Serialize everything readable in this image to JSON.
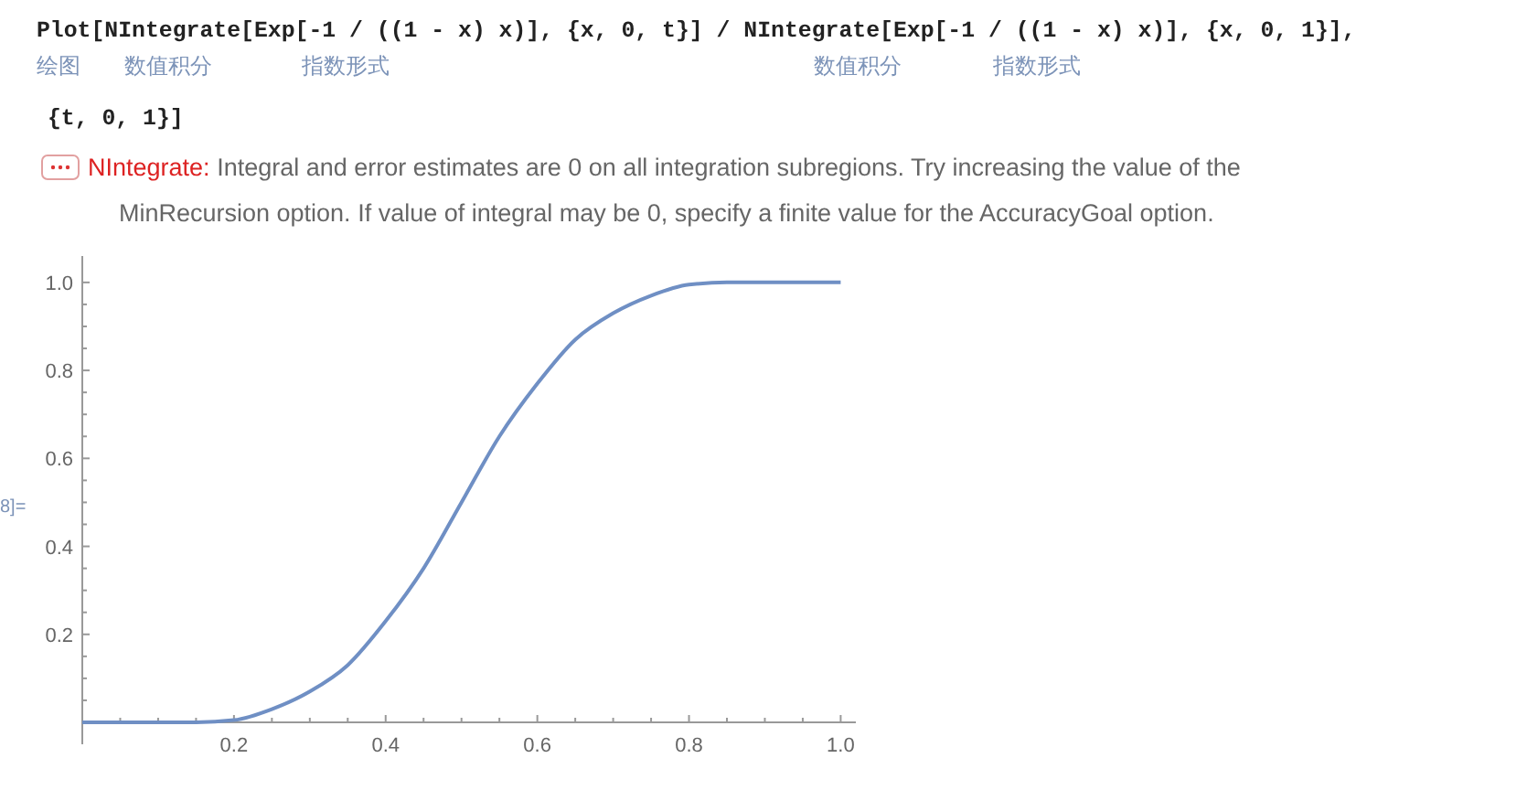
{
  "chart_data": {
    "type": "line",
    "annotations": [
      "Plot[NIntegrate[Exp[-1 / ((1 - x) x)], {x, 0, t}] / NIntegrate[Exp[-1 / ((1 - x) x)], {x, 0, 1}],",
      "绘图",
      "数值积分",
      "指数形式",
      "数值积分",
      "指数形式",
      "{t, 0, 1}]",
      "NIntegrate:",
      "Integral and error estimates are 0 on all integration subregions. Try increasing the value of the",
      "MinRecursion option. If value of integral may be 0, specify a finite value for the AccuracyGoal option.",
      "8]="
    ],
    "x": [
      0,
      0.05,
      0.1,
      0.15,
      0.2,
      0.25,
      0.3,
      0.35,
      0.4,
      0.45,
      0.5,
      0.55,
      0.6,
      0.65,
      0.7,
      0.75,
      0.8,
      0.85,
      0.9,
      0.95,
      1.0
    ],
    "series": [
      {
        "color": "#6f8fc4",
        "values": [
          0,
          0,
          0,
          0,
          0.005,
          0.03,
          0.07,
          0.13,
          0.23,
          0.35,
          0.5,
          0.65,
          0.77,
          0.87,
          0.93,
          0.97,
          0.995,
          1,
          1,
          1,
          1
        ]
      }
    ],
    "xlim": [
      0,
      1.02
    ],
    "ylim": [
      0,
      1.06
    ],
    "xticks": [
      {
        "value": 0.05,
        "label": null
      },
      {
        "value": 0.1,
        "label": null
      },
      {
        "value": 0.15,
        "label": null
      },
      0.2,
      {
        "value": 0.25,
        "label": null
      },
      {
        "value": 0.3,
        "label": null
      },
      {
        "value": 0.35,
        "label": null
      },
      0.4,
      {
        "value": 0.45,
        "label": null
      },
      {
        "value": 0.5,
        "label": null
      },
      {
        "value": 0.55,
        "label": null
      },
      0.6,
      {
        "value": 0.65,
        "label": null
      },
      {
        "value": 0.7,
        "label": null
      },
      {
        "value": 0.75,
        "label": null
      },
      0.8,
      {
        "value": 0.85,
        "label": null
      },
      {
        "value": 0.9,
        "label": null
      },
      {
        "value": 0.95,
        "label": null
      },
      {
        "value": 1,
        "label": "1.0"
      }
    ],
    "yticks": [
      {
        "value": 0.05,
        "label": null
      },
      {
        "value": 0.1,
        "label": null
      },
      {
        "value": 0.15,
        "label": null
      },
      0.2,
      {
        "value": 0.25,
        "label": null
      },
      {
        "value": 0.3,
        "label": null
      },
      {
        "value": 0.35,
        "label": null
      },
      0.4,
      {
        "value": 0.45,
        "label": null
      },
      {
        "value": 0.5,
        "label": null
      },
      {
        "value": 0.55,
        "label": null
      },
      0.6,
      {
        "value": 0.65,
        "label": null
      },
      {
        "value": 0.7,
        "label": null
      },
      {
        "value": 0.75,
        "label": null
      },
      0.8,
      {
        "value": 0.85,
        "label": null
      },
      {
        "value": 0.9,
        "label": null
      },
      {
        "value": 0.95,
        "label": null
      },
      {
        "value": 1,
        "label": "1.0"
      }
    ],
    "grid": false,
    "marker": "none",
    "line_style": "solid"
  }
}
